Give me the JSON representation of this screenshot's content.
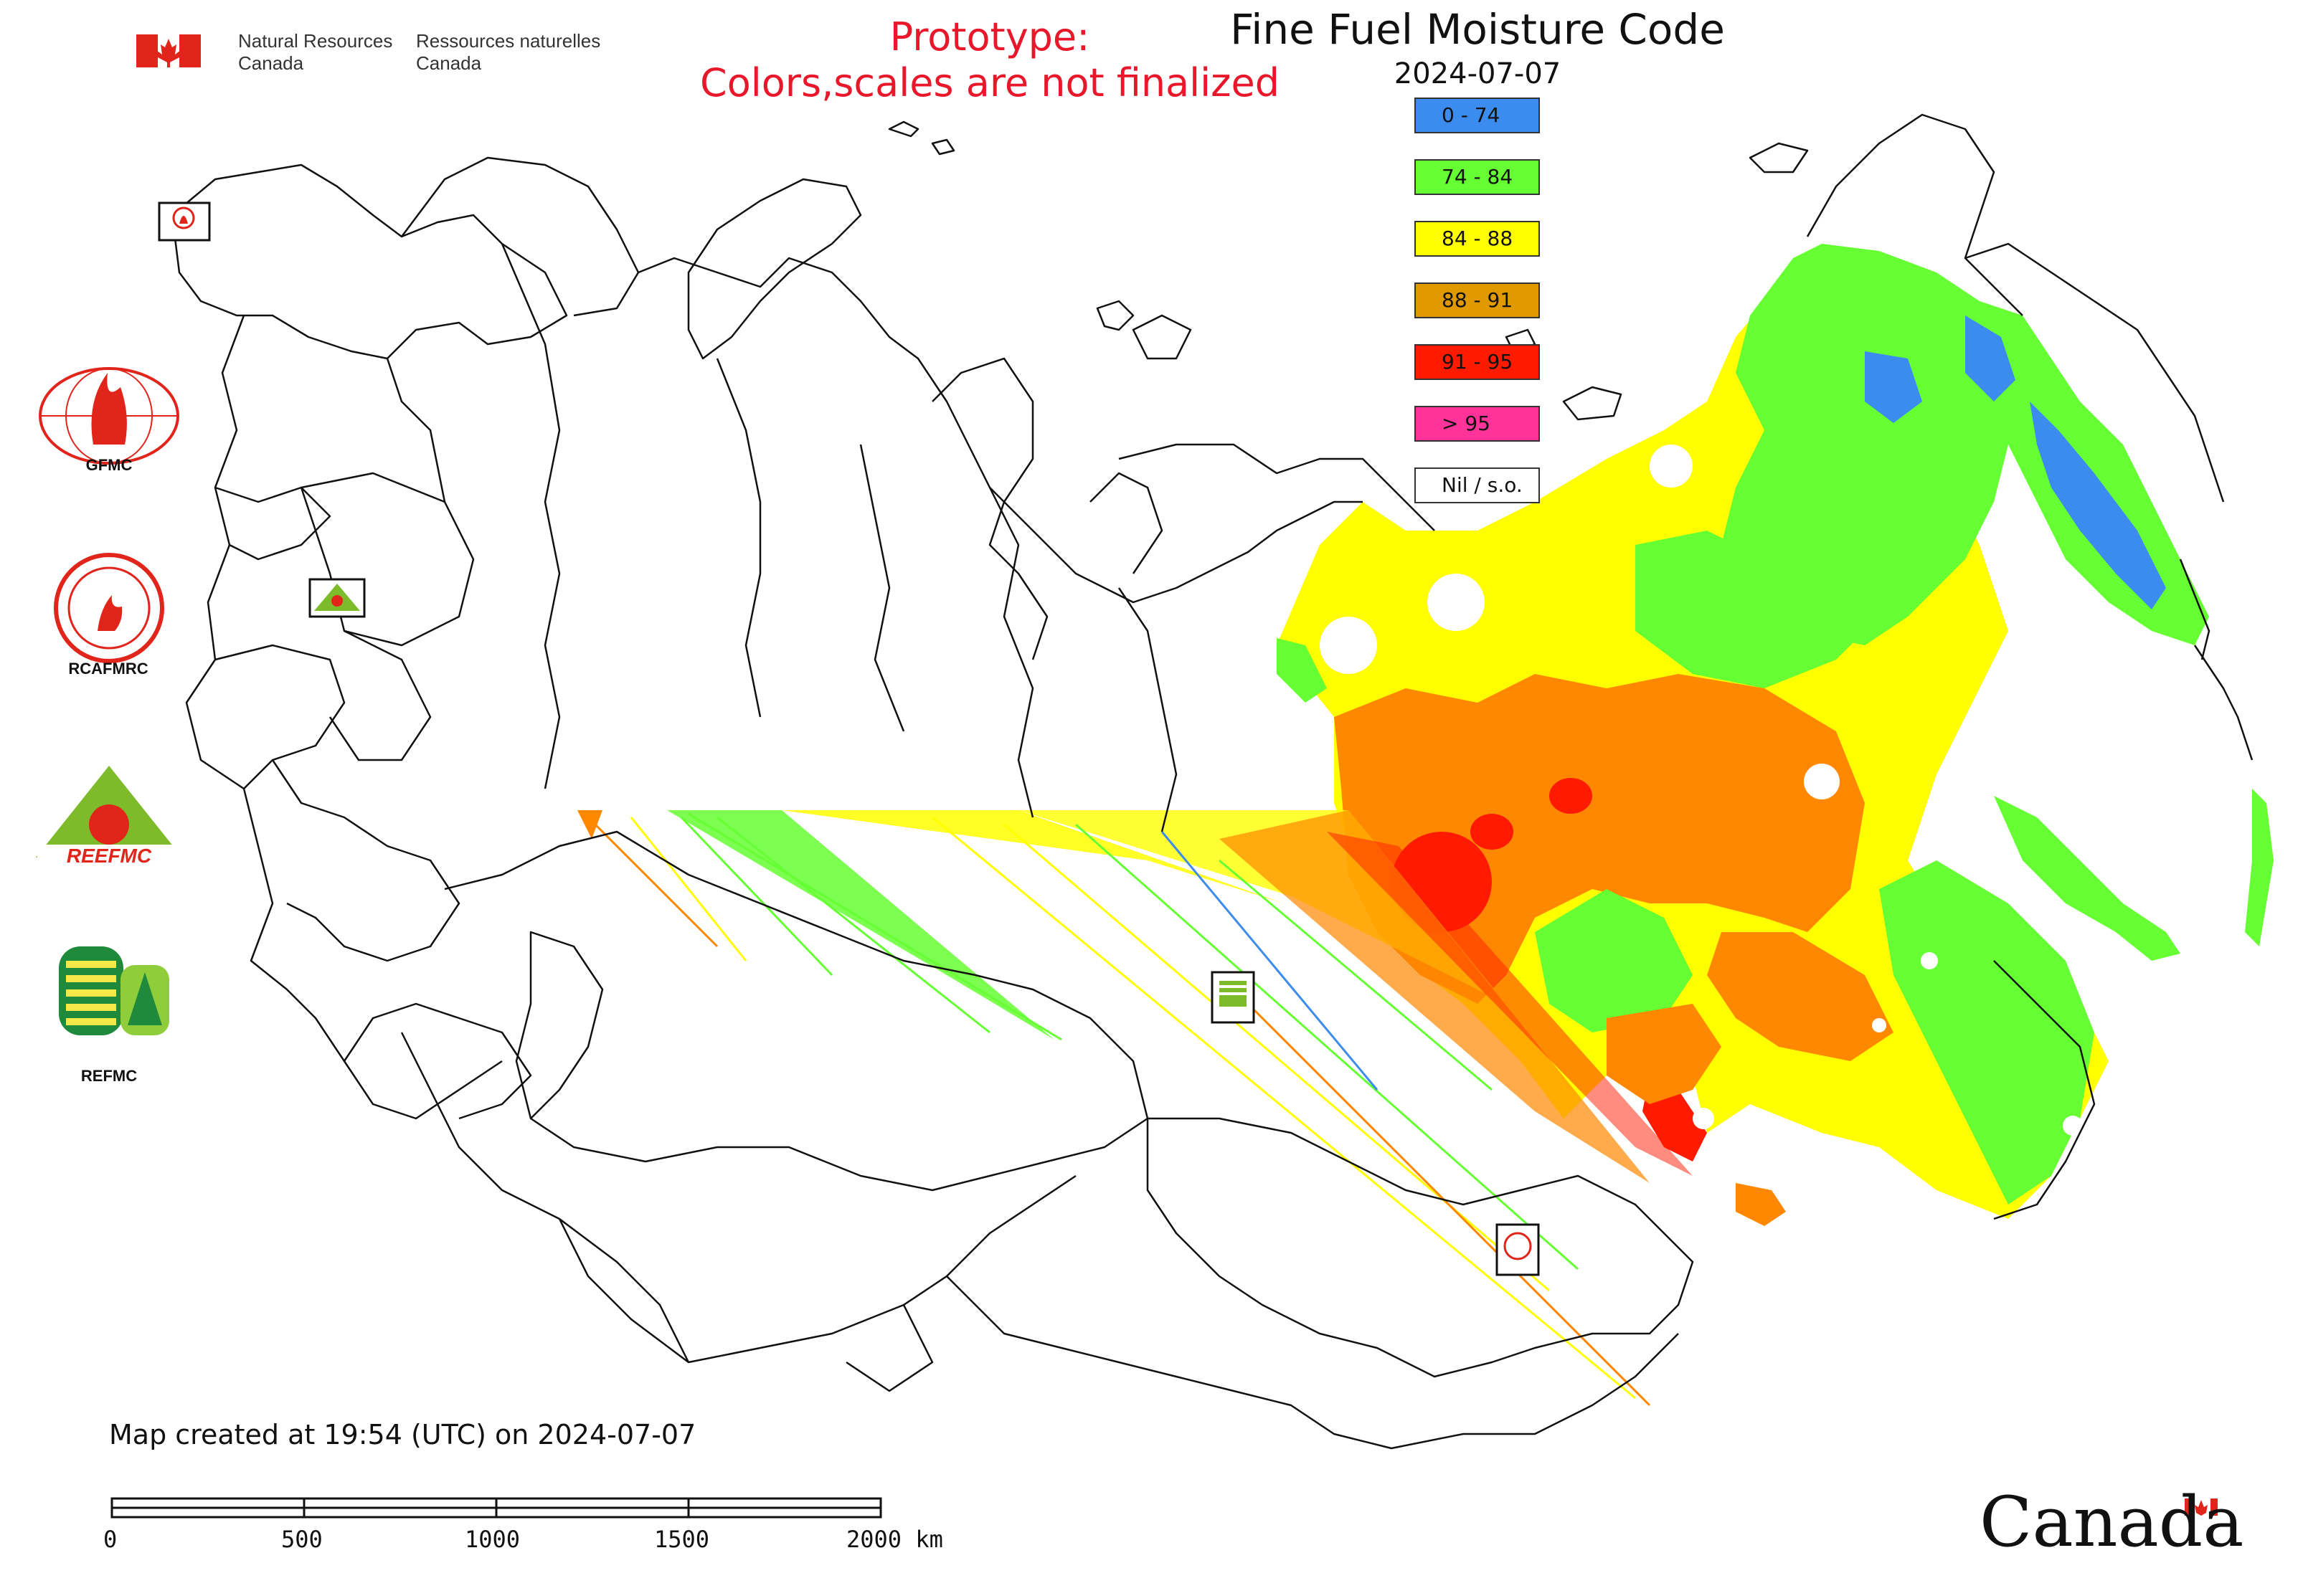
{
  "header": {
    "signature_en_line1": "Natural Resources",
    "signature_en_line2": "Canada",
    "signature_fr_line1": "Ressources naturelles",
    "signature_fr_line2": "Canada",
    "prototype_line1": "Prototype:",
    "prototype_line2": "Colors,scales are not finalized"
  },
  "map": {
    "title": "Fine Fuel Moisture Code",
    "date": "2024-07-07",
    "created_text": "Map created at 19:54 (UTC) on 2024-07-07"
  },
  "legend": {
    "items": [
      {
        "label": "0 - 74",
        "color": "#3c8cf0"
      },
      {
        "label": "74 - 84",
        "color": "#66ff33"
      },
      {
        "label": "84 - 88",
        "color": "#ffff00"
      },
      {
        "label": "88 - 91",
        "color": "#e09a00"
      },
      {
        "label": "91 - 95",
        "color": "#ff1a00"
      },
      {
        "label": "> 95",
        "color": "#ff3399"
      },
      {
        "label": "Nil / s.o.",
        "color": "#ffffff"
      }
    ]
  },
  "agencies": {
    "gfmc": "GFMC",
    "rcafmrc": "RCAFMRC",
    "reefmc": "REEFMC",
    "refmc": "REFMC",
    "rcafmrc_logo_text": "RCAFMRC",
    "reefmc_logo_text": "REEFMC"
  },
  "scale_bar": {
    "labels": [
      "0",
      "500",
      "1000",
      "1500",
      "2000 km"
    ]
  },
  "footer": {
    "wordmark": "Canada"
  }
}
